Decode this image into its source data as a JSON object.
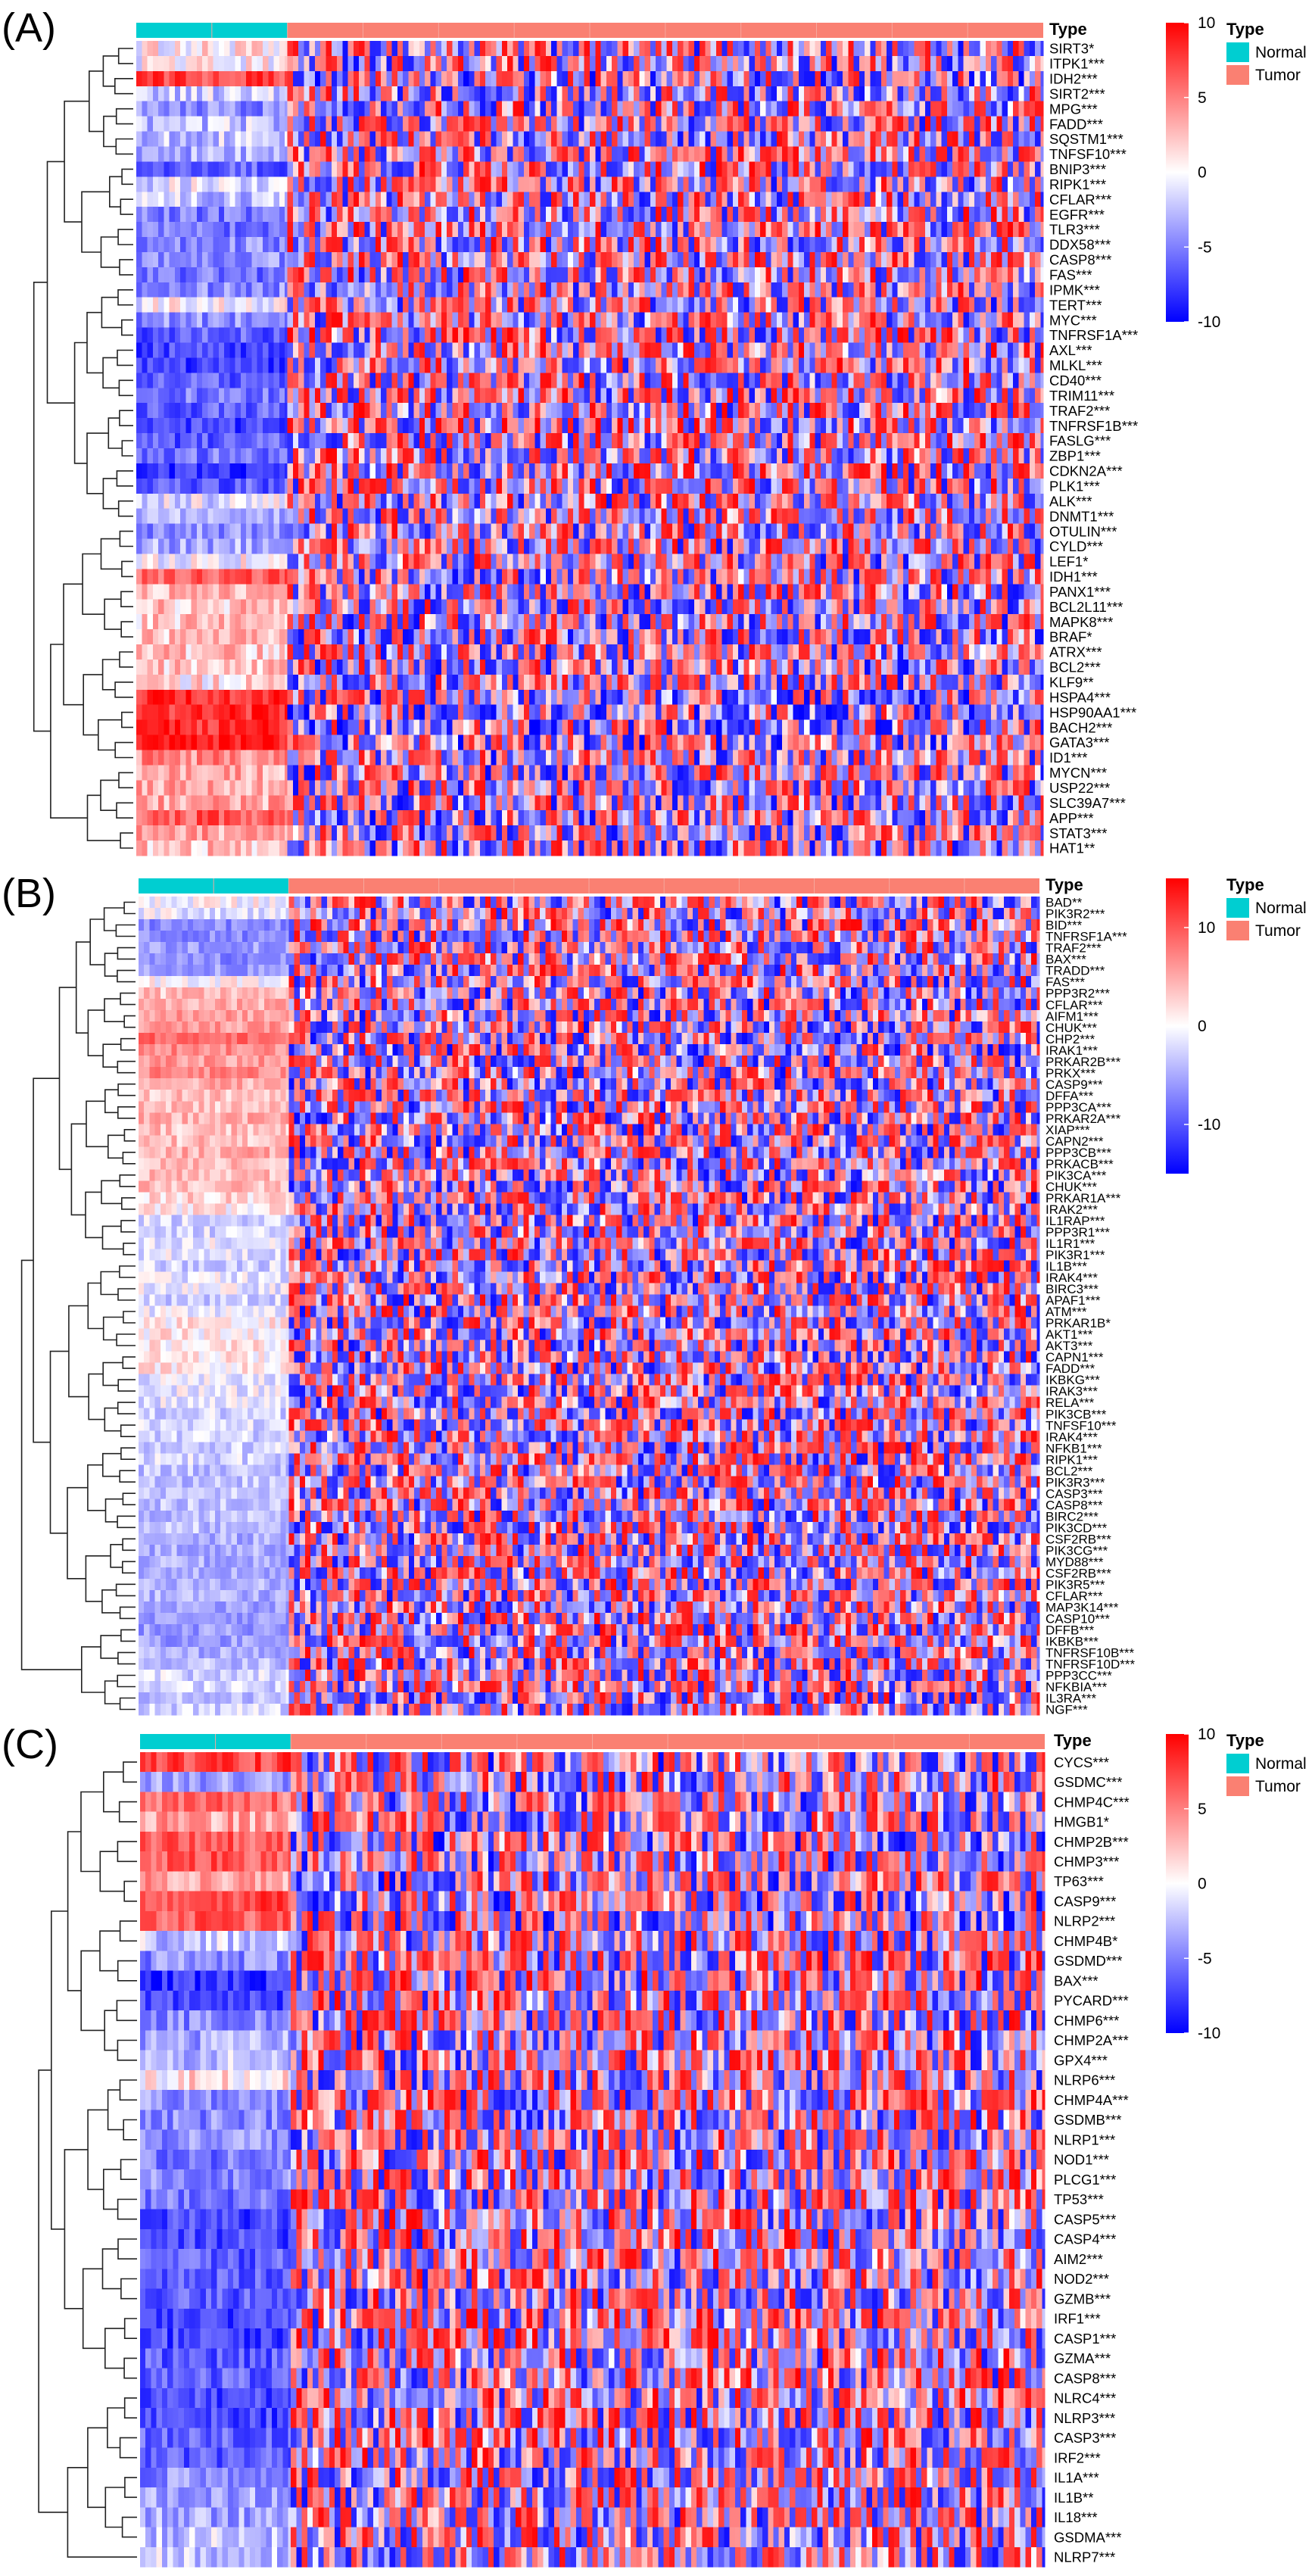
{
  "figure": {
    "type_title": "Type",
    "groups": [
      {
        "name": "Normal",
        "color": "#00CED1"
      },
      {
        "name": "Tumor",
        "color": "#FA8072"
      }
    ],
    "color_low": "#0000FF",
    "color_mid": "#FFFFFF",
    "color_high": "#FF0000"
  },
  "chart_data": [
    {
      "type": "heatmap",
      "panel": "(A)",
      "legend_title": "Type",
      "scale_ticks": [
        10,
        5,
        0,
        -5,
        -10
      ],
      "scale_range": [
        -10,
        10
      ],
      "genes": [
        "SIRT3*",
        "ITPK1***",
        "IDH2***",
        "SIRT2***",
        "MPG***",
        "FADD***",
        "SQSTM1***",
        "TNFSF10***",
        "BNIP3***",
        "RIPK1***",
        "CFLAR***",
        "EGFR***",
        "TLR3***",
        "DDX58***",
        "CASP8***",
        "FAS***",
        "IPMK***",
        "TERT***",
        "MYC***",
        "TNFRSF1A***",
        "AXL***",
        "MLKL***",
        "CD40***",
        "TRIM11***",
        "TRAF2***",
        "TNFRSF1B***",
        "FASLG***",
        "ZBP1***",
        "CDKN2A***",
        "PLK1***",
        "ALK***",
        "DNMT1***",
        "OTULIN***",
        "CYLD***",
        "LEF1*",
        "IDH1***",
        "PANX1***",
        "BCL2L11***",
        "MAPK8***",
        "BRAF*",
        "ATRX***",
        "BCL2***",
        "KLF9**",
        "HSPA4***",
        "HSP90AA1***",
        "BACH2***",
        "GATA3***",
        "ID1***",
        "MYCN***",
        "USP22***",
        "SLC39A7***",
        "APP***",
        "STAT3***",
        "HAT1**"
      ],
      "normal_bias": [
        0.4,
        0.3,
        7,
        -1.5,
        -4,
        -2,
        -2,
        -3,
        -6,
        -1,
        -2,
        -5,
        -5,
        -4,
        -4,
        -5,
        -4,
        0,
        -4,
        -6,
        -7,
        -7,
        -6,
        -5,
        -6,
        -7,
        -6,
        -5,
        -8,
        -6,
        -1,
        -2,
        -4,
        -3,
        0,
        6,
        2,
        2,
        2,
        2,
        2,
        2,
        1,
        8,
        8,
        8,
        9,
        4,
        3,
        3,
        3,
        6,
        3,
        2
      ]
    },
    {
      "type": "heatmap",
      "panel": "(B)",
      "legend_title": "Type",
      "scale_ticks": [
        10,
        0,
        -10
      ],
      "scale_range": [
        -15,
        15
      ],
      "genes": [
        "BAD**",
        "PIK3R2***",
        "BID***",
        "TNFRSF1A***",
        "TRAF2***",
        "BAX***",
        "TRADD***",
        "FAS***",
        "PPP3R2***",
        "CFLAR***",
        "AIFM1***",
        "CHUK***",
        "CHP2***",
        "IRAK1***",
        "PRKAR2B***",
        "PRKX***",
        "CASP9***",
        "DFFA***",
        "PPP3CA***",
        "PRKAR2A***",
        "XIAP***",
        "CAPN2***",
        "PPP3CB***",
        "PRKACB***",
        "PIK3CA***",
        "CHUK***",
        "PRKAR1A***",
        "IRAK2***",
        "IL1RAP***",
        "PPP3R1***",
        "IL1R1***",
        "PIK3R1***",
        "IL1B***",
        "IRAK4***",
        "BIRC3***",
        "APAF1***",
        "ATM***",
        "PRKAR1B*",
        "AKT1***",
        "AKT3***",
        "CAPN1***",
        "FADD***",
        "IKBKG***",
        "IRAK3***",
        "RELA***",
        "PIK3CB***",
        "TNFSF10***",
        "IRAK4***",
        "NFKB1***",
        "RIPK1***",
        "BCL2***",
        "PIK3R3***",
        "CASP3***",
        "CASP8***",
        "BIRC2***",
        "PIK3CD***",
        "CSF2RB***",
        "PIK3CG***",
        "MYD88***",
        "CSF2RB***",
        "PIK3R5***",
        "CFLAR***",
        "MAP3K14***",
        "CASP10***",
        "DFFB***",
        "IKBKB***",
        "TNFRSF10B***",
        "TNFRSF10D***",
        "PPP3CC***",
        "NFKBIA***",
        "IL3RA***",
        "NGF***"
      ],
      "normal_bias": [
        0,
        -1,
        -6,
        -6,
        -5,
        -6,
        -5,
        0,
        3,
        4,
        5,
        5,
        8,
        6,
        5,
        6,
        4,
        3,
        3,
        4,
        3,
        3,
        4,
        3,
        3,
        3,
        2,
        1,
        -2,
        -2,
        -1,
        -1,
        -2,
        -1,
        -1,
        -2,
        -1,
        1,
        1,
        1,
        1,
        1,
        -1,
        -1,
        -1,
        -2,
        -2,
        -2,
        -2,
        -2,
        -3,
        -3,
        -3,
        -3,
        -3,
        -3,
        -4,
        -4,
        -4,
        -4,
        -4,
        -4,
        -5,
        -5,
        -5,
        -5,
        -4,
        -3,
        -2,
        -2,
        -3,
        -2
      ]
    },
    {
      "type": "heatmap",
      "panel": "(C)",
      "legend_title": "Type",
      "scale_ticks": [
        10,
        5,
        0,
        -5,
        -10
      ],
      "scale_range": [
        -10,
        10
      ],
      "genes": [
        "CYCS***",
        "GSDMC***",
        "CHMP4C***",
        "HMGB1*",
        "CHMP2B***",
        "CHMP3***",
        "TP63***",
        "CASP9***",
        "NLRP2***",
        "CHMP4B*",
        "GSDMD***",
        "BAX***",
        "PYCARD***",
        "CHMP6***",
        "CHMP2A***",
        "GPX4***",
        "NLRP6***",
        "CHMP4A***",
        "GSDMB***",
        "NLRP1***",
        "NOD1***",
        "PLCG1***",
        "TP53***",
        "CASP5***",
        "CASP4***",
        "AIM2***",
        "NOD2***",
        "GZMB***",
        "IRF1***",
        "CASP1***",
        "GZMA***",
        "CASP8***",
        "NLRC4***",
        "NLRP3***",
        "CASP3***",
        "IRF2***",
        "IL1A***",
        "IL1B**",
        "IL18***",
        "GSDMA***",
        "NLRP7***"
      ],
      "normal_bias": [
        7,
        -3,
        5,
        3,
        6,
        6,
        3,
        7,
        6,
        -2,
        -4,
        -8,
        -7,
        -4,
        -3,
        -2,
        1,
        -4,
        -4,
        -4,
        -5,
        -4,
        -5,
        -7,
        -7,
        -6,
        -6,
        -6,
        -7,
        -7,
        -6,
        -6,
        -7,
        -7,
        -6,
        -6,
        -4,
        -3,
        -3,
        -2,
        -2
      ]
    }
  ]
}
